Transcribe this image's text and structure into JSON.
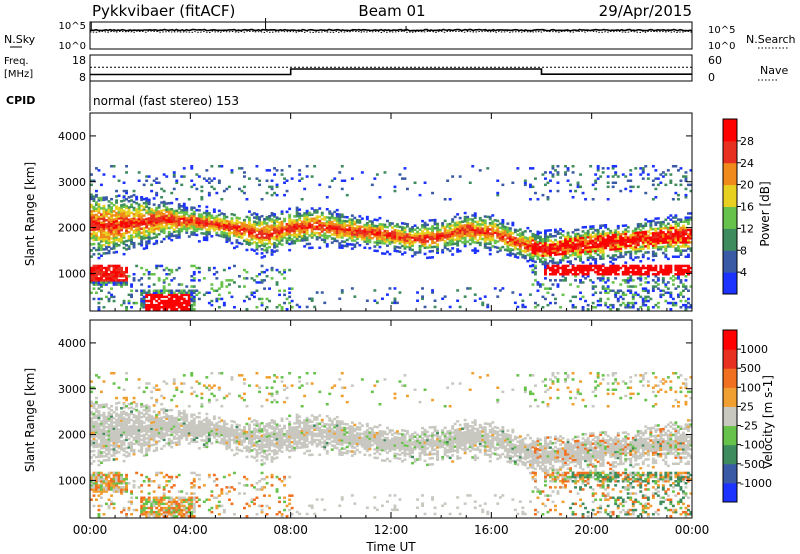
{
  "header": {
    "station": "Pykkvibaer (fitACF)",
    "beam": "Beam 01",
    "date": "29/Apr/2015"
  },
  "status_panels": {
    "nsky_label": "N.Sky",
    "nsky_ticks": [
      "10^5",
      "10^0"
    ],
    "nsearch_label": "N.Search",
    "nsearch_ticks": [
      "10^5",
      "10^0"
    ],
    "freq_label_line1": "Freq.",
    "freq_label_line2": "[MHz]",
    "freq_ticks": [
      "18",
      "8"
    ],
    "nave_label": "Nave",
    "nave_ticks": [
      "60",
      "0"
    ],
    "cpid_label": "CPID",
    "cpid_text": "normal (fast stereo) 153"
  },
  "chart_data": [
    {
      "type": "line",
      "name": "frequency",
      "x_hours": [
        0,
        8,
        8,
        18,
        18,
        24
      ],
      "freq_mhz": [
        10.5,
        10.5,
        12.6,
        12.6,
        10.6,
        10.6
      ],
      "nave_dotted_level": 13.3,
      "ylim": [
        8,
        18
      ]
    },
    {
      "type": "heatmap",
      "ylabel": "Slant Range [km]",
      "ylim": [
        180,
        4500
      ],
      "yticks": [
        "1000",
        "2000",
        "3000",
        "4000"
      ],
      "xticks": [
        "00:00",
        "04:00",
        "08:00",
        "12:00",
        "16:00",
        "20:00",
        "00:00"
      ],
      "colorbar_label": "Power [dB]",
      "colorbar_ticks": [
        "4",
        "8",
        "12",
        "16",
        "20",
        "24",
        "28"
      ],
      "colorbar_colors": [
        "#1c33ff",
        "#3a5aa6",
        "#3e8c5e",
        "#66c24a",
        "#e8d020",
        "#f08a1a",
        "#e83020",
        "#ff0000"
      ],
      "scatter_band_km": [
        [
          0,
          1500,
          2600
        ],
        [
          1,
          1550,
          2550
        ],
        [
          2,
          1700,
          2500
        ],
        [
          3,
          1850,
          2450
        ],
        [
          4,
          1900,
          2350
        ],
        [
          5,
          1850,
          2250
        ],
        [
          6,
          1700,
          2200
        ],
        [
          7,
          1500,
          2150
        ],
        [
          8,
          1700,
          2250
        ],
        [
          9,
          1750,
          2300
        ],
        [
          10,
          1700,
          2200
        ],
        [
          11,
          1650,
          2100
        ],
        [
          12,
          1600,
          2050
        ],
        [
          13,
          1500,
          1950
        ],
        [
          14,
          1550,
          2050
        ],
        [
          15,
          1650,
          2200
        ],
        [
          16,
          1600,
          2150
        ],
        [
          17,
          1450,
          1900
        ],
        [
          18,
          1250,
          1750
        ],
        [
          19,
          1300,
          1850
        ],
        [
          20,
          1350,
          1900
        ],
        [
          21,
          1400,
          1950
        ],
        [
          22,
          1450,
          2000
        ],
        [
          23,
          1500,
          2100
        ],
        [
          24,
          1500,
          2150
        ]
      ]
    },
    {
      "type": "heatmap",
      "ylabel": "Slant Range [km]",
      "ylim": [
        180,
        4500
      ],
      "yticks": [
        "1000",
        "2000",
        "3000",
        "4000"
      ],
      "xticks": [
        "00:00",
        "04:00",
        "08:00",
        "12:00",
        "16:00",
        "20:00",
        "00:00"
      ],
      "xlabel": "Time UT",
      "colorbar_label": "Velocity [m s-1]",
      "colorbar_ticks": [
        "1000",
        "500",
        "100",
        "25",
        "-25",
        "-100",
        "-500",
        "-1000"
      ],
      "colorbar_colors": [
        "#1c33ff",
        "#3a5aa6",
        "#3e8c5e",
        "#66c24a",
        "#c8c8c0",
        "#f0a030",
        "#f07020",
        "#e83020",
        "#ff0000"
      ]
    }
  ]
}
